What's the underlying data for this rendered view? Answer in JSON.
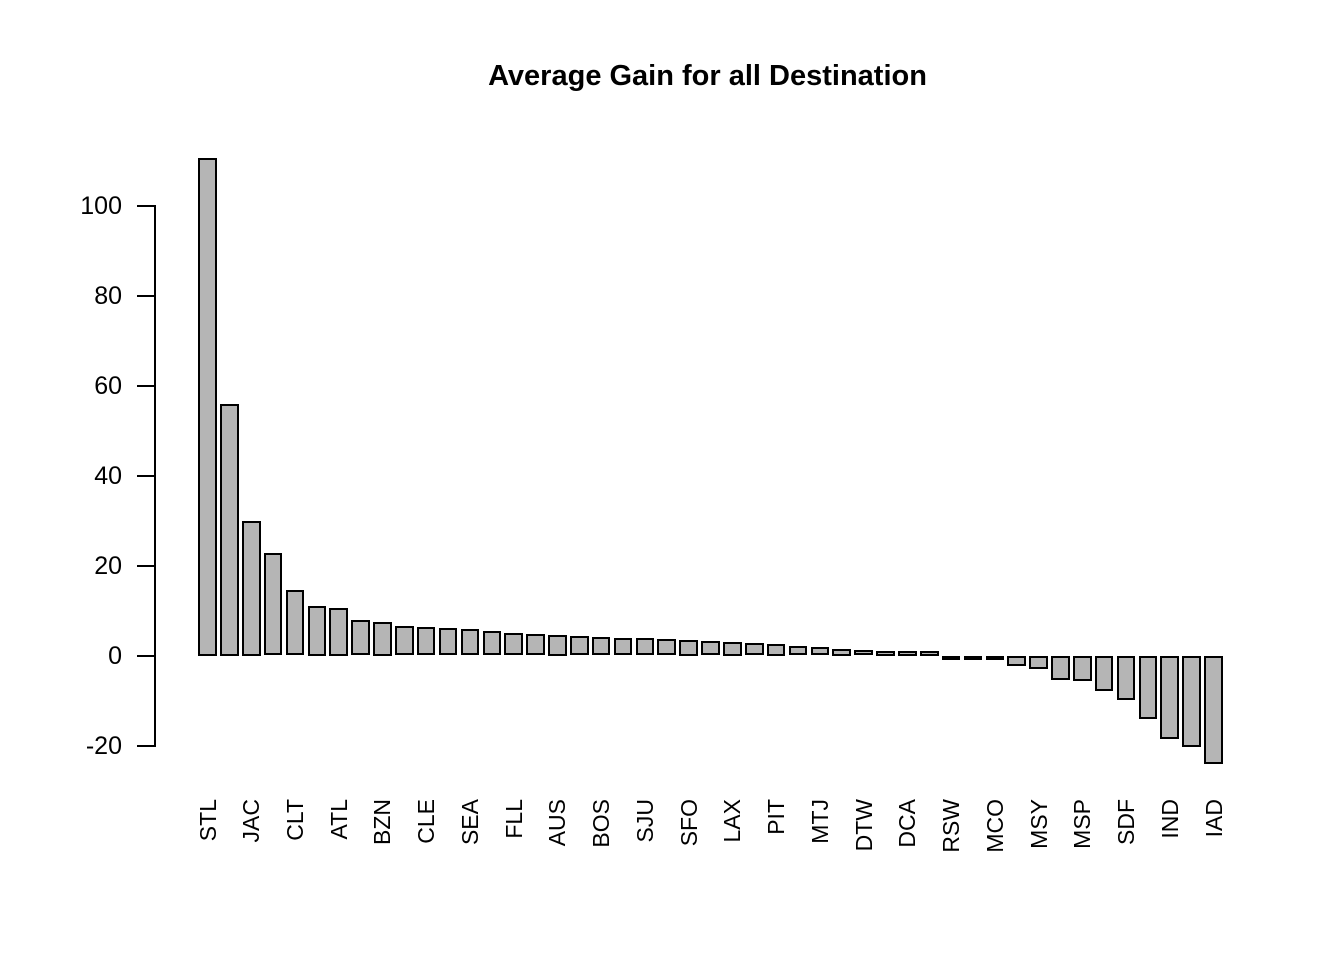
{
  "window": {
    "background": "#ffffff"
  },
  "chart_data": {
    "type": "bar",
    "title": "Average Gain for all Destination",
    "categories": [
      "STL",
      "JAC",
      "CLT",
      "ATL",
      "BZN",
      "CLE",
      "SEA",
      "FLL",
      "AUS",
      "BOS",
      "SJU",
      "SFO",
      "LAX",
      "PIT",
      "MTJ",
      "DTW",
      "DCA",
      "RSW",
      "MCO",
      "MSY",
      "MSP",
      "SDF",
      "IND",
      "IAD"
    ],
    "values": [
      110.5,
      56,
      30,
      22.8,
      14.6,
      11.0,
      10.5,
      7.8,
      7.5,
      6.6,
      6.4,
      6.1,
      5.8,
      5.4,
      5.1,
      4.8,
      4.5,
      4.3,
      4.1,
      3.9,
      3.8,
      3.6,
      3.5,
      3.3,
      3.0,
      2.8,
      2.5,
      2.2,
      1.9,
      1.5,
      1.2,
      0.9,
      0.7,
      0.5,
      -0.2,
      -0.4,
      -0.8,
      -2.4,
      -3.1,
      -5.4,
      -5.6,
      -7.9,
      -9.8,
      -14.1,
      -18.5,
      -20.4,
      -24.2
    ],
    "labeled_bar_indices": [
      0,
      2,
      4,
      6,
      8,
      10,
      12,
      14,
      16,
      18,
      20,
      22,
      24,
      26,
      28,
      30,
      32,
      34,
      36,
      38,
      40,
      42,
      44,
      46
    ],
    "bars_per_label": 2,
    "yticks": [
      -20,
      0,
      20,
      40,
      60,
      80,
      100
    ],
    "ylim": [
      -24.2,
      110.5
    ],
    "xlabel": "",
    "ylabel": "",
    "grid": false,
    "legend": "none",
    "bar_fill": "#b5b5b5",
    "bar_border": "#000000",
    "axis_color": "#000000",
    "text_color": "#000000"
  }
}
